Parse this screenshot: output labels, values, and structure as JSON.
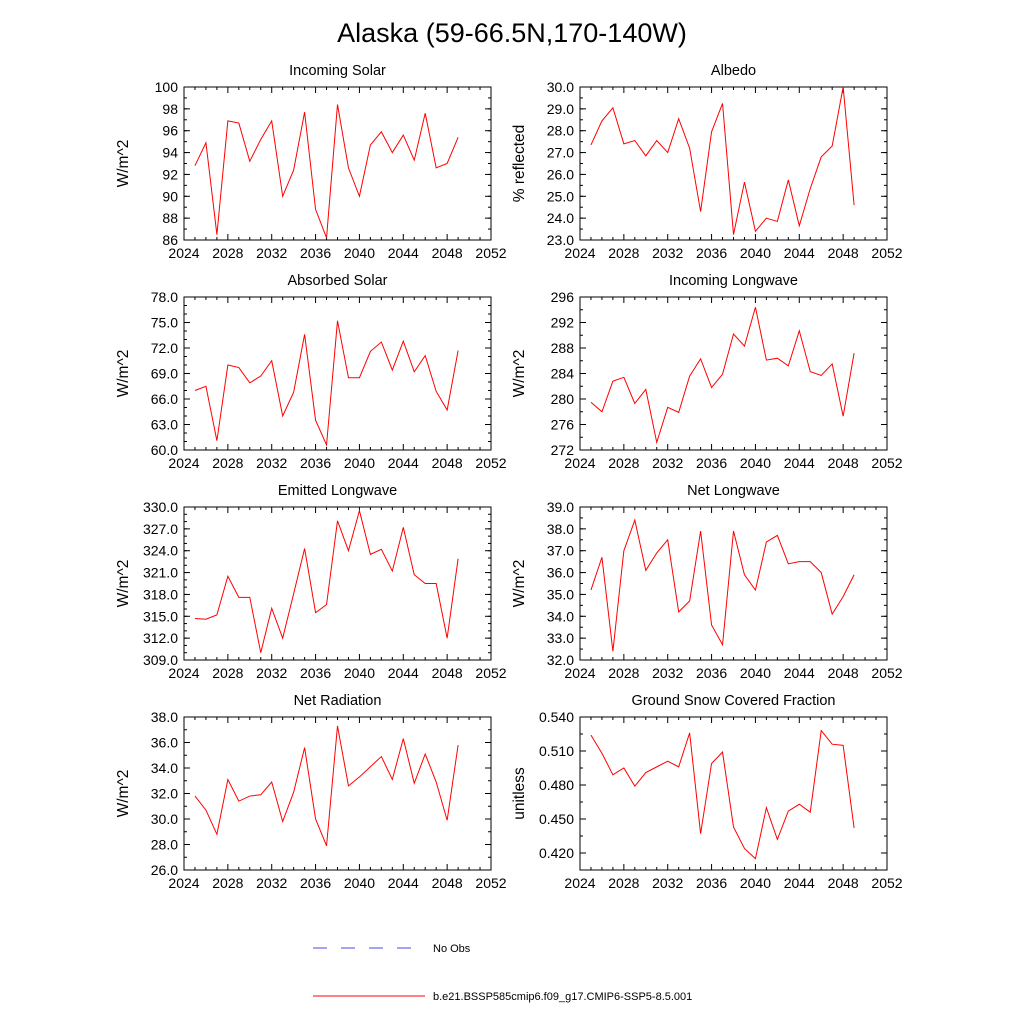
{
  "page": {
    "title": "Alaska (59-66.5N,170-140W)"
  },
  "legend": {
    "obs_label": "No Obs",
    "model_label": "b.e21.BSSP585cmip6.f09_g17.CMIP6-SSP5-8.5.001",
    "obs_color": "#4a4ae0",
    "model_color": "#ff0000"
  },
  "chart_data": [
    {
      "type": "line",
      "title": "Incoming Solar",
      "ylabel": "W/m^2",
      "xlim": [
        2024,
        2052
      ],
      "ylim": [
        86,
        100
      ],
      "yticks": [
        "86",
        "88",
        "90",
        "92",
        "94",
        "96",
        "98",
        "100"
      ],
      "yminor": 1,
      "xticks": [
        "2024",
        "2028",
        "2032",
        "2036",
        "2040",
        "2044",
        "2048",
        "2052"
      ],
      "x": [
        2025,
        2026,
        2027,
        2028,
        2029,
        2030,
        2031,
        2032,
        2033,
        2034,
        2035,
        2036,
        2037,
        2038,
        2039,
        2040,
        2041,
        2042,
        2043,
        2044,
        2045,
        2046,
        2047,
        2048,
        2049
      ],
      "values": [
        92.8,
        94.9,
        86.5,
        96.9,
        96.7,
        93.2,
        95.2,
        96.9,
        90.0,
        92.4,
        97.7,
        88.8,
        86.2,
        98.4,
        92.6,
        90.0,
        94.7,
        95.9,
        94.0,
        95.6,
        93.3,
        97.6,
        92.6,
        93.0,
        95.4
      ]
    },
    {
      "type": "line",
      "title": "Albedo",
      "ylabel": "% reflected",
      "xlim": [
        2024,
        2052
      ],
      "ylim": [
        23,
        30
      ],
      "yticks": [
        "23.0",
        "24.0",
        "25.0",
        "26.0",
        "27.0",
        "28.0",
        "29.0",
        "30.0"
      ],
      "yminor": 0.5,
      "xticks": [
        "2024",
        "2028",
        "2032",
        "2036",
        "2040",
        "2044",
        "2048",
        "2052"
      ],
      "x": [
        2025,
        2026,
        2027,
        2028,
        2029,
        2030,
        2031,
        2032,
        2033,
        2034,
        2035,
        2036,
        2037,
        2038,
        2039,
        2040,
        2041,
        2042,
        2043,
        2044,
        2045,
        2046,
        2047,
        2048,
        2049
      ],
      "values": [
        27.35,
        28.45,
        29.05,
        27.4,
        27.55,
        26.85,
        27.55,
        27.0,
        28.55,
        27.2,
        24.3,
        27.95,
        29.25,
        23.25,
        25.65,
        23.4,
        24.0,
        23.85,
        25.75,
        23.65,
        25.35,
        26.8,
        27.3,
        30.0,
        24.6
      ]
    },
    {
      "type": "line",
      "title": "Absorbed Solar",
      "ylabel": "W/m^2",
      "xlim": [
        2024,
        2052
      ],
      "ylim": [
        60,
        78
      ],
      "yticks": [
        "60.0",
        "63.0",
        "66.0",
        "69.0",
        "72.0",
        "75.0",
        "78.0"
      ],
      "yminor": 1,
      "xticks": [
        "2024",
        "2028",
        "2032",
        "2036",
        "2040",
        "2044",
        "2048",
        "2052"
      ],
      "x": [
        2025,
        2026,
        2027,
        2028,
        2029,
        2030,
        2031,
        2032,
        2033,
        2034,
        2035,
        2036,
        2037,
        2038,
        2039,
        2040,
        2041,
        2042,
        2043,
        2044,
        2045,
        2046,
        2047,
        2048,
        2049
      ],
      "values": [
        67.0,
        67.5,
        61.1,
        70.0,
        69.7,
        67.9,
        68.7,
        70.5,
        64.0,
        66.8,
        73.6,
        63.5,
        60.6,
        75.2,
        68.5,
        68.5,
        71.6,
        72.7,
        69.4,
        72.8,
        69.2,
        71.1,
        66.9,
        64.7,
        71.7
      ]
    },
    {
      "type": "line",
      "title": "Incoming Longwave",
      "ylabel": "W/m^2",
      "xlim": [
        2024,
        2052
      ],
      "ylim": [
        272,
        296
      ],
      "yticks": [
        "272",
        "276",
        "280",
        "284",
        "288",
        "292",
        "296"
      ],
      "yminor": 2,
      "xticks": [
        "2024",
        "2028",
        "2032",
        "2036",
        "2040",
        "2044",
        "2048",
        "2052"
      ],
      "x": [
        2025,
        2026,
        2027,
        2028,
        2029,
        2030,
        2031,
        2032,
        2033,
        2034,
        2035,
        2036,
        2037,
        2038,
        2039,
        2040,
        2041,
        2042,
        2043,
        2044,
        2045,
        2046,
        2047,
        2048,
        2049
      ],
      "values": [
        279.5,
        278.0,
        282.8,
        283.4,
        279.3,
        281.5,
        273.2,
        278.7,
        277.9,
        283.6,
        286.3,
        281.8,
        283.9,
        290.2,
        288.3,
        294.4,
        286.1,
        286.4,
        285.2,
        290.7,
        284.3,
        283.7,
        285.5,
        277.3,
        287.2
      ]
    },
    {
      "type": "line",
      "title": "Emitted Longwave",
      "ylabel": "W/m^2",
      "xlim": [
        2024,
        2052
      ],
      "ylim": [
        309,
        330
      ],
      "yticks": [
        "309.0",
        "312.0",
        "315.0",
        "318.0",
        "321.0",
        "324.0",
        "327.0",
        "330.0"
      ],
      "yminor": 1,
      "xticks": [
        "2024",
        "2028",
        "2032",
        "2036",
        "2040",
        "2044",
        "2048",
        "2052"
      ],
      "x": [
        2025,
        2026,
        2027,
        2028,
        2029,
        2030,
        2031,
        2032,
        2033,
        2034,
        2035,
        2036,
        2037,
        2038,
        2039,
        2040,
        2041,
        2042,
        2043,
        2044,
        2045,
        2046,
        2047,
        2048,
        2049
      ],
      "values": [
        314.7,
        314.6,
        315.2,
        320.5,
        317.6,
        317.6,
        310.0,
        316.1,
        312.0,
        318.1,
        324.3,
        315.5,
        316.6,
        328.1,
        324.0,
        329.5,
        323.5,
        324.2,
        321.2,
        327.2,
        320.7,
        319.5,
        319.5,
        312.0,
        322.9
      ]
    },
    {
      "type": "line",
      "title": "Net Longwave",
      "ylabel": "W/m^2",
      "xlim": [
        2024,
        2052
      ],
      "ylim": [
        32,
        39
      ],
      "yticks": [
        "32.0",
        "33.0",
        "34.0",
        "35.0",
        "36.0",
        "37.0",
        "38.0",
        "39.0"
      ],
      "yminor": 0.5,
      "xticks": [
        "2024",
        "2028",
        "2032",
        "2036",
        "2040",
        "2044",
        "2048",
        "2052"
      ],
      "x": [
        2025,
        2026,
        2027,
        2028,
        2029,
        2030,
        2031,
        2032,
        2033,
        2034,
        2035,
        2036,
        2037,
        2038,
        2039,
        2040,
        2041,
        2042,
        2043,
        2044,
        2045,
        2046,
        2047,
        2048,
        2049
      ],
      "values": [
        35.2,
        36.7,
        32.4,
        37.0,
        38.4,
        36.1,
        36.9,
        37.5,
        34.2,
        34.7,
        37.9,
        33.6,
        32.7,
        37.9,
        35.9,
        35.2,
        37.4,
        37.7,
        36.4,
        36.5,
        36.5,
        36.0,
        34.1,
        34.9,
        35.9
      ]
    },
    {
      "type": "line",
      "title": "Net Radiation",
      "ylabel": "W/m^2",
      "xlim": [
        2024,
        2052
      ],
      "ylim": [
        26,
        38
      ],
      "yticks": [
        "26.0",
        "28.0",
        "30.0",
        "32.0",
        "34.0",
        "36.0",
        "38.0"
      ],
      "yminor": 1,
      "xticks": [
        "2024",
        "2028",
        "2032",
        "2036",
        "2040",
        "2044",
        "2048",
        "2052"
      ],
      "x": [
        2025,
        2026,
        2027,
        2028,
        2029,
        2030,
        2031,
        2032,
        2033,
        2034,
        2035,
        2036,
        2037,
        2038,
        2039,
        2040,
        2041,
        2042,
        2043,
        2044,
        2045,
        2046,
        2047,
        2048,
        2049
      ],
      "values": [
        31.8,
        30.7,
        28.8,
        33.1,
        31.4,
        31.8,
        31.9,
        32.9,
        29.8,
        32.1,
        35.6,
        30.0,
        27.9,
        37.3,
        32.6,
        33.3,
        34.1,
        34.9,
        33.1,
        36.3,
        32.8,
        35.1,
        32.9,
        29.9,
        35.8
      ]
    },
    {
      "type": "line",
      "title": "Ground Snow Covered Fraction",
      "ylabel": "unitless",
      "xlim": [
        2024,
        2052
      ],
      "ylim": [
        0.405,
        0.54
      ],
      "yticks": [
        "0.420",
        "0.450",
        "0.480",
        "0.510",
        "0.540"
      ],
      "yticks_values": [
        0.42,
        0.45,
        0.48,
        0.51,
        0.54
      ],
      "yminor": 0.015,
      "xticks": [
        "2024",
        "2028",
        "2032",
        "2036",
        "2040",
        "2044",
        "2048",
        "2052"
      ],
      "x": [
        2025,
        2026,
        2027,
        2028,
        2029,
        2030,
        2031,
        2032,
        2033,
        2034,
        2035,
        2036,
        2037,
        2038,
        2039,
        2040,
        2041,
        2042,
        2043,
        2044,
        2045,
        2046,
        2047,
        2048,
        2049
      ],
      "values": [
        0.524,
        0.508,
        0.489,
        0.495,
        0.479,
        0.491,
        0.496,
        0.501,
        0.496,
        0.526,
        0.437,
        0.499,
        0.509,
        0.443,
        0.424,
        0.415,
        0.46,
        0.432,
        0.457,
        0.463,
        0.456,
        0.528,
        0.516,
        0.515,
        0.442
      ]
    }
  ]
}
